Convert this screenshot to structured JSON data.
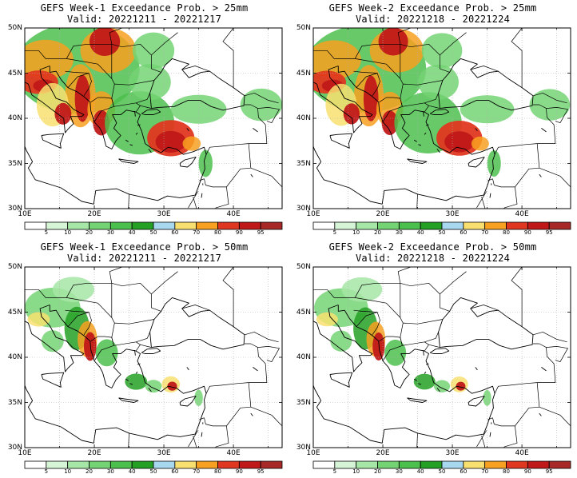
{
  "panels": [
    {
      "id": "p1",
      "title": "GEFS Week-1 Exceedance Prob. > 25mm",
      "valid": "Valid: 20221211 - 20221217",
      "threshold": 25
    },
    {
      "id": "p2",
      "title": "GEFS Week-2 Exceedance Prob. > 25mm",
      "valid": "Valid: 20221218 - 20221224",
      "threshold": 25
    },
    {
      "id": "p3",
      "title": "GEFS Week-1 Exceedance Prob. > 50mm",
      "valid": "Valid: 20221211 - 20221217",
      "threshold": 50
    },
    {
      "id": "p4",
      "title": "GEFS Week-2 Exceedance Prob. > 50mm",
      "valid": "Valid: 20221218 - 20221224",
      "threshold": 50
    }
  ],
  "lat_labels": [
    "50N",
    "45N",
    "40N",
    "35N",
    "30N"
  ],
  "lon_labels": [
    "10E",
    "20E",
    "30E",
    "40E"
  ],
  "colorbar": {
    "labels": [
      "5",
      "10",
      "20",
      "30",
      "40",
      "50",
      "60",
      "70",
      "80",
      "90",
      "95"
    ],
    "colors": [
      "#ffffff",
      "#d6f5d6",
      "#a6e6a6",
      "#74d474",
      "#4cc04c",
      "#24a024",
      "#a8d8f0",
      "#f8e070",
      "#f8a020",
      "#e03820",
      "#c01818",
      "#a82828"
    ]
  }
}
